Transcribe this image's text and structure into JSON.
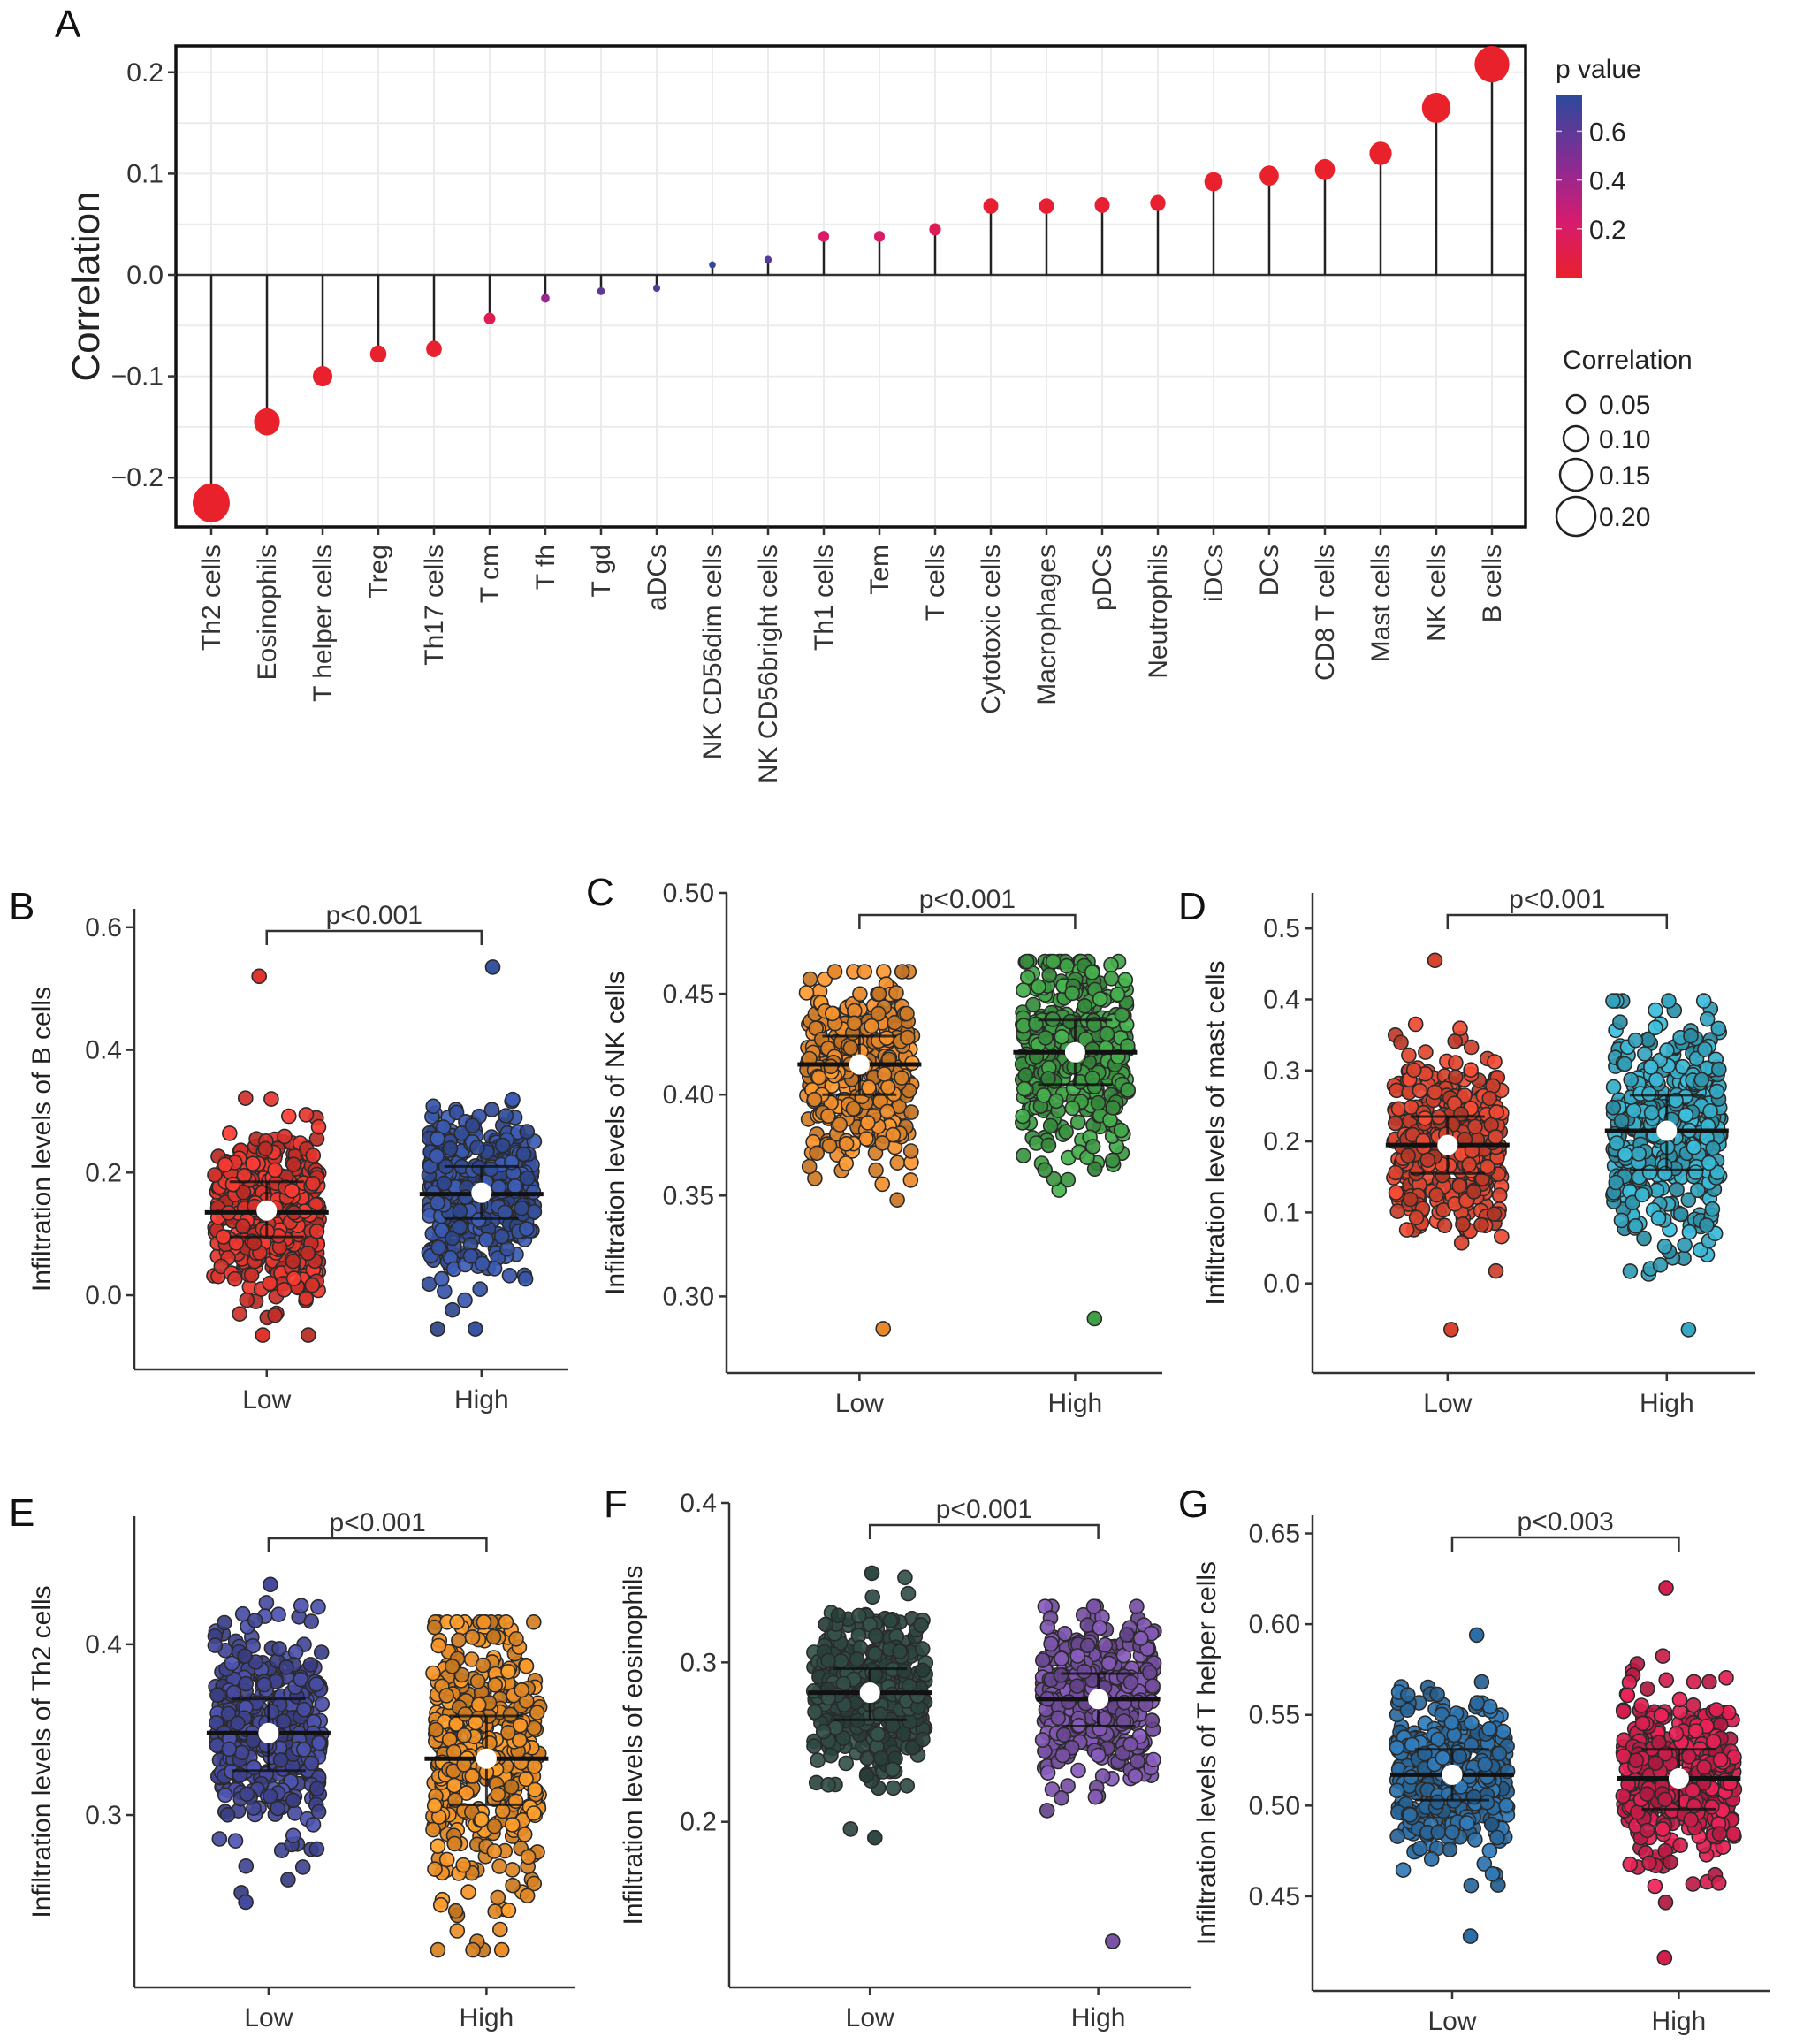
{
  "chart_data": [
    {
      "panel": "A",
      "type": "lollipop",
      "title": "",
      "xlabel": "",
      "ylabel": "Correlation",
      "ylim": [
        -0.245,
        0.225
      ],
      "yticks": [
        -0.2,
        -0.1,
        0.0,
        0.1,
        0.2
      ],
      "ytick_labels": [
        "−0.2",
        "−0.1",
        "0.0",
        "0.1",
        "0.2"
      ],
      "grid": true,
      "categories": [
        "Th2 cells",
        "Eosinophils",
        "T helper cells",
        "Treg",
        "Th17 cells",
        "T cm",
        "T fh",
        "T gd",
        "aDCs",
        "NK CD56dim cells",
        "NK CD56bright cells",
        "Th1 cells",
        "Tem",
        "T cells",
        "Cytotoxic cells",
        "Macrophages",
        "pDCs",
        "Neutrophils",
        "iDCs",
        "DCs",
        "CD8 T cells",
        "Mast cells",
        "NK cells",
        "B cells"
      ],
      "values": [
        -0.225,
        -0.145,
        -0.1,
        -0.078,
        -0.073,
        -0.043,
        -0.023,
        -0.016,
        -0.013,
        0.01,
        0.015,
        0.038,
        0.038,
        0.045,
        0.068,
        0.068,
        0.069,
        0.071,
        0.092,
        0.098,
        0.104,
        0.12,
        0.165,
        0.208
      ],
      "p_values": [
        0.0001,
        0.0005,
        0.002,
        0.01,
        0.015,
        0.12,
        0.42,
        0.6,
        0.65,
        0.72,
        0.62,
        0.18,
        0.18,
        0.13,
        0.02,
        0.02,
        0.02,
        0.015,
        0.003,
        0.002,
        0.001,
        0.0005,
        0.0001,
        1e-05
      ],
      "color_legend": {
        "title": "p value",
        "ticks": [
          "0.6",
          "0.4",
          "0.2"
        ],
        "tick_values": [
          0.6,
          0.4,
          0.2
        ],
        "range": [
          0.0,
          0.75
        ],
        "low_color": "#e8212b",
        "mid_color": "#d81b7a",
        "high_color": "#2b4a9b"
      },
      "size_legend": {
        "title": "Correlation",
        "entries": [
          "0.05",
          "0.10",
          "0.15",
          "0.20"
        ],
        "entry_values": [
          0.05,
          0.1,
          0.15,
          0.2
        ]
      },
      "legend_position": "right"
    },
    {
      "panel": "B",
      "type": "jitter-box",
      "ylabel": "Infiltration levels of B cells",
      "categories": [
        "Low",
        "High"
      ],
      "ylim": [
        -0.085,
        0.63
      ],
      "yticks": [
        0.0,
        0.2,
        0.4,
        0.6
      ],
      "ytick_labels": [
        "0.0",
        "0.2",
        "0.4",
        "0.6"
      ],
      "p_label": "p<0.001",
      "series": [
        {
          "name": "Low",
          "color": "#e0342c",
          "mean": 0.138,
          "q1": 0.095,
          "median": 0.135,
          "q3": 0.185,
          "min": -0.065,
          "max": 0.52,
          "n": 500
        },
        {
          "name": "High",
          "color": "#3653a4",
          "mean": 0.167,
          "q1": 0.125,
          "median": 0.165,
          "q3": 0.21,
          "min": -0.055,
          "max": 0.535,
          "n": 500
        }
      ]
    },
    {
      "panel": "C",
      "type": "jitter-box",
      "ylabel": "Infiltration levels of NK cells",
      "categories": [
        "Low",
        "High"
      ],
      "ylim": [
        0.273,
        0.5
      ],
      "yticks": [
        0.3,
        0.35,
        0.4,
        0.45,
        0.5
      ],
      "ytick_labels": [
        "0.30",
        "0.35",
        "0.40",
        "0.45",
        "0.50"
      ],
      "p_label": "p<0.001",
      "series": [
        {
          "name": "Low",
          "color": "#e8892b",
          "mean": 0.415,
          "q1": 0.4,
          "median": 0.415,
          "q3": 0.429,
          "min": 0.284,
          "max": 0.461,
          "n": 500
        },
        {
          "name": "High",
          "color": "#3fa046",
          "mean": 0.421,
          "q1": 0.405,
          "median": 0.421,
          "q3": 0.437,
          "min": 0.289,
          "max": 0.466,
          "n": 500
        }
      ]
    },
    {
      "panel": "D",
      "type": "jitter-box",
      "ylabel": "Infiltration levels of mast cells",
      "categories": [
        "Low",
        "High"
      ],
      "ylim": [
        -0.095,
        0.55
      ],
      "yticks": [
        0.0,
        0.1,
        0.2,
        0.3,
        0.4,
        0.5
      ],
      "ytick_labels": [
        "0.0",
        "0.1",
        "0.2",
        "0.3",
        "0.4",
        "0.5"
      ],
      "p_label": "p<0.001",
      "series": [
        {
          "name": "Low",
          "color": "#d9432e",
          "mean": 0.195,
          "q1": 0.155,
          "median": 0.195,
          "q3": 0.235,
          "min": -0.065,
          "max": 0.455,
          "n": 500
        },
        {
          "name": "High",
          "color": "#35a9c4",
          "mean": 0.215,
          "q1": 0.16,
          "median": 0.215,
          "q3": 0.265,
          "min": -0.065,
          "max": 0.398,
          "n": 500
        }
      ]
    },
    {
      "panel": "E",
      "type": "jitter-box",
      "ylabel": "Infiltration levels of Th2 cells",
      "categories": [
        "Low",
        "High"
      ],
      "ylim": [
        0.212,
        0.475
      ],
      "yticks": [
        0.3,
        0.4
      ],
      "ytick_labels": [
        "0.3",
        "0.4"
      ],
      "p_label": "p<0.001",
      "series": [
        {
          "name": "Low",
          "color": "#454a9e",
          "mean": 0.348,
          "q1": 0.326,
          "median": 0.348,
          "q3": 0.368,
          "min": 0.249,
          "max": 0.435,
          "n": 500
        },
        {
          "name": "High",
          "color": "#ee8f26",
          "mean": 0.333,
          "q1": 0.306,
          "median": 0.333,
          "q3": 0.358,
          "min": 0.221,
          "max": 0.413,
          "n": 500
        }
      ]
    },
    {
      "panel": "F",
      "type": "jitter-box",
      "ylabel": "Infiltration levels of eosinophils",
      "categories": [
        "Low",
        "High"
      ],
      "ylim": [
        0.11,
        0.4
      ],
      "yticks": [
        0.2,
        0.3,
        0.4
      ],
      "ytick_labels": [
        "0.2",
        "0.3",
        "0.4"
      ],
      "p_label": "p<0.001",
      "series": [
        {
          "name": "Low",
          "color": "#2f4a44",
          "mean": 0.281,
          "q1": 0.264,
          "median": 0.281,
          "q3": 0.296,
          "min": 0.19,
          "max": 0.356,
          "n": 500
        },
        {
          "name": "High",
          "color": "#7a52a8",
          "mean": 0.277,
          "q1": 0.26,
          "median": 0.277,
          "q3": 0.293,
          "min": 0.125,
          "max": 0.335,
          "n": 500
        }
      ]
    },
    {
      "panel": "G",
      "type": "jitter-box",
      "ylabel": "Infiltration levels of T helper cells",
      "categories": [
        "Low",
        "High"
      ],
      "ylim": [
        0.41,
        0.66
      ],
      "yticks": [
        0.45,
        0.5,
        0.55,
        0.6,
        0.65
      ],
      "ytick_labels": [
        "0.45",
        "0.50",
        "0.55",
        "0.60",
        "0.65"
      ],
      "p_label": "p<0.003",
      "series": [
        {
          "name": "Low",
          "color": "#2c6fa8",
          "mean": 0.517,
          "q1": 0.503,
          "median": 0.517,
          "q3": 0.531,
          "min": 0.428,
          "max": 0.594,
          "n": 500
        },
        {
          "name": "High",
          "color": "#d41e4e",
          "mean": 0.515,
          "q1": 0.498,
          "median": 0.515,
          "q3": 0.531,
          "min": 0.416,
          "max": 0.62,
          "n": 500
        }
      ]
    }
  ]
}
